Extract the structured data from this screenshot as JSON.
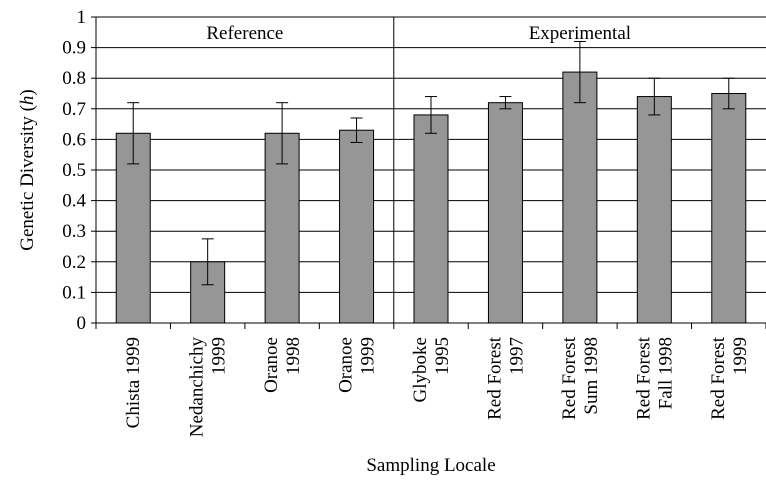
{
  "chart_data": {
    "type": "bar",
    "categories": [
      [
        "Chista 1999"
      ],
      [
        "Nedanchichy",
        "1999"
      ],
      [
        "Oranoe",
        "1998"
      ],
      [
        "Oranoe",
        "1999"
      ],
      [
        "Glyboke",
        "1995"
      ],
      [
        "Red Forest",
        "1997"
      ],
      [
        "Red Forest",
        "Sum 1998"
      ],
      [
        "Red Forest",
        "Fall 1998"
      ],
      [
        "Red Forest",
        "1999"
      ]
    ],
    "values": [
      0.62,
      0.2,
      0.62,
      0.63,
      0.68,
      0.72,
      0.82,
      0.74,
      0.75
    ],
    "errors": [
      0.1,
      0.075,
      0.1,
      0.04,
      0.06,
      0.02,
      0.1,
      0.06,
      0.05
    ],
    "ylim": [
      0,
      1
    ],
    "yticks": [
      "0",
      "0.1",
      "0.2",
      "0.3",
      "0.4",
      "0.5",
      "0.6",
      "0.7",
      "0.8",
      "0.9",
      "1"
    ],
    "xlabel": "Sampling Locale",
    "ylabel_main": "Genetic Diversity (",
    "ylabel_var": "h",
    "ylabel_end": ")",
    "groups": [
      {
        "label": "Reference",
        "start": 0,
        "end": 3
      },
      {
        "label": "Experimental",
        "start": 4,
        "end": 8
      }
    ],
    "grid": true,
    "bar_color": "#969696",
    "bar_edge": "#000000"
  }
}
